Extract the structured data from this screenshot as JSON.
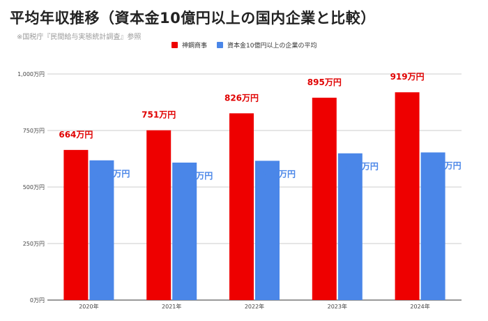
{
  "header": {
    "title": "平均年収推移（資本金10億円以上の国内企業と比較）",
    "subtitle": "※国税庁『民間給与実態統計調査』参照"
  },
  "colors": {
    "series1": "#ee0000",
    "series2": "#4a86e8",
    "label1": "#e00000",
    "label2": "#4a86e8",
    "grid": "#cccccc"
  },
  "chart_data": {
    "type": "bar",
    "categories": [
      "2020年",
      "2021年",
      "2022年",
      "2023年",
      "2024年"
    ],
    "series": [
      {
        "name": "神鋼商事",
        "values": [
          664,
          751,
          826,
          895,
          919
        ],
        "labels": [
          "664万円",
          "751万円",
          "826万円",
          "895万円",
          "919万円"
        ]
      },
      {
        "name": "資本金10億円以上の企業の平均",
        "values": [
          618,
          608,
          616,
          649,
          653
        ],
        "labels": [
          "618万円",
          "608万円",
          "616万円",
          "649万円",
          "653万円"
        ]
      }
    ],
    "ylim": [
      0,
      1000
    ],
    "yticks": [
      0,
      250,
      500,
      750,
      1000
    ],
    "ytick_labels": [
      "0万円",
      "250万円",
      "500万円",
      "750万円",
      "1,000万円"
    ],
    "grid": true,
    "legend_position": "top-center"
  }
}
